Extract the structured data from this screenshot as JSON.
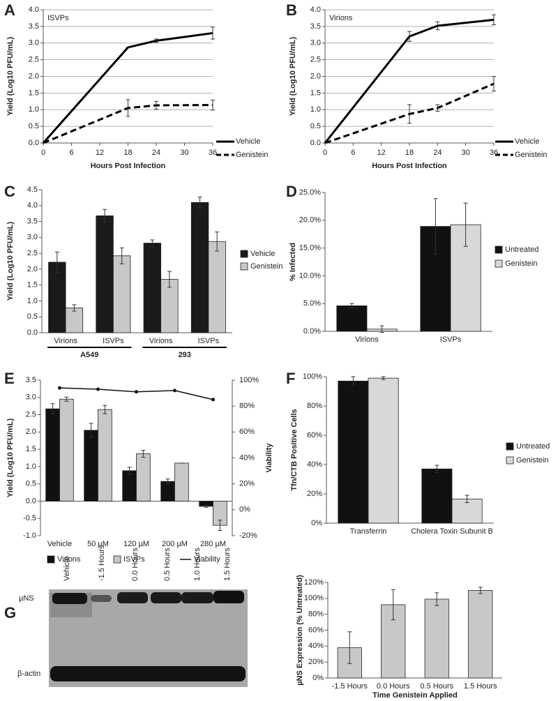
{
  "panels": [
    "A",
    "B",
    "C",
    "D",
    "E",
    "F",
    "G"
  ],
  "blot": {
    "lanes": [
      "Vehicle",
      "-1.5 Hours",
      "0.0 Hours",
      "0.5 Hours",
      "1.0 Hours",
      "1.5 Hours"
    ],
    "bands": [
      "µNS",
      "β-actin"
    ]
  },
  "chart_data": [
    {
      "type": "line",
      "annotation": "ISVPs",
      "xlabel": "Hours Post Infection",
      "ylabel": "Yield (Log10 PFU/mL)",
      "x": [
        0,
        18,
        24,
        36
      ],
      "xlim": [
        0,
        36
      ],
      "xticks": [
        0,
        6,
        12,
        18,
        24,
        30,
        36
      ],
      "ylim": [
        0,
        4
      ],
      "yticks": [
        {
          "value": 0,
          "label": "0.0"
        },
        {
          "value": 0.5,
          "label": "0.5"
        },
        {
          "value": 1,
          "label": "1.0"
        },
        {
          "value": 1.5,
          "label": "1.5"
        },
        {
          "value": 2,
          "label": "2.0"
        },
        {
          "value": 2.5,
          "label": "2.5"
        },
        {
          "value": 3,
          "label": "3.0"
        },
        {
          "value": 3.5,
          "label": "3.5"
        },
        {
          "value": 4,
          "label": "4.0"
        }
      ],
      "grid": true,
      "legend": "right",
      "series": [
        {
          "name": "Vehicle",
          "color": "#000000",
          "dash": false,
          "values": [
            0,
            2.87,
            3.07,
            3.3
          ],
          "errors": [
            0,
            0,
            0.05,
            0.18
          ]
        },
        {
          "name": "Genistein",
          "color": "#000000",
          "dash": true,
          "values": [
            0,
            1.05,
            1.13,
            1.14
          ],
          "errors": [
            0,
            0.25,
            0.12,
            0.15
          ]
        }
      ]
    },
    {
      "type": "line",
      "annotation": "Virions",
      "xlabel": "Hours Post Infection",
      "ylabel": "Yield (Log10 PFU/mL)",
      "x": [
        0,
        18,
        24,
        36
      ],
      "xlim": [
        0,
        36
      ],
      "xticks": [
        0,
        6,
        12,
        18,
        24,
        30,
        36
      ],
      "ylim": [
        0,
        4
      ],
      "yticks": [
        {
          "value": 0,
          "label": "0.0"
        },
        {
          "value": 0.5,
          "label": "0.5"
        },
        {
          "value": 1,
          "label": "1.0"
        },
        {
          "value": 1.5,
          "label": "1.5"
        },
        {
          "value": 2,
          "label": "2.0"
        },
        {
          "value": 2.5,
          "label": "2.5"
        },
        {
          "value": 3,
          "label": "3.0"
        },
        {
          "value": 3.5,
          "label": "3.5"
        },
        {
          "value": 4,
          "label": "4.0"
        }
      ],
      "grid": true,
      "legend": "right",
      "series": [
        {
          "name": "Vehicle",
          "color": "#000000",
          "dash": false,
          "values": [
            0,
            3.2,
            3.52,
            3.7
          ],
          "errors": [
            0,
            0.15,
            0.12,
            0.15
          ]
        },
        {
          "name": "Genistein",
          "color": "#000000",
          "dash": true,
          "values": [
            0,
            0.87,
            1.05,
            1.78
          ],
          "errors": [
            0,
            0.28,
            0.1,
            0.22
          ]
        }
      ]
    },
    {
      "type": "bar",
      "ylabel": "Yield (Log10 PFU/mL)",
      "categories": [
        "Virions",
        "ISVPs",
        "Virions",
        "ISVPs"
      ],
      "group_labels": [
        "A549",
        "293"
      ],
      "ylim": [
        0,
        4.5
      ],
      "yticks": [
        {
          "value": 0,
          "label": "0.0"
        },
        {
          "value": 0.5,
          "label": "0.5"
        },
        {
          "value": 1,
          "label": "1.0"
        },
        {
          "value": 1.5,
          "label": "1.5"
        },
        {
          "value": 2,
          "label": "2.0"
        },
        {
          "value": 2.5,
          "label": "2.5"
        },
        {
          "value": 3,
          "label": "3.0"
        },
        {
          "value": 3.5,
          "label": "3.5"
        },
        {
          "value": 4,
          "label": "4.0"
        },
        {
          "value": 4.5,
          "label": "4.5"
        }
      ],
      "grid": false,
      "legend": "right",
      "series": [
        {
          "name": "Vehicle",
          "color": "#1a1a1a",
          "values": [
            2.22,
            3.68,
            2.82,
            4.1
          ],
          "errors": [
            0.32,
            0.2,
            0.1,
            0.17
          ]
        },
        {
          "name": "Genistein",
          "color": "#c8c8c8",
          "values": [
            0.78,
            2.42,
            1.68,
            2.87
          ],
          "errors": [
            0.1,
            0.25,
            0.25,
            0.3
          ]
        }
      ]
    },
    {
      "type": "bar",
      "ylabel": "% Infected",
      "categories": [
        "Virions",
        "ISVPs"
      ],
      "ylim": [
        0,
        25
      ],
      "yticks": [
        {
          "value": 0,
          "label": "0.0%"
        },
        {
          "value": 5,
          "label": "5.0%"
        },
        {
          "value": 10,
          "label": "10.0%"
        },
        {
          "value": 15,
          "label": "15.0%"
        },
        {
          "value": 20,
          "label": "20.0%"
        },
        {
          "value": 25,
          "label": "25.0%"
        }
      ],
      "grid": false,
      "legend": "right",
      "series": [
        {
          "name": "Untreated",
          "color": "#111111",
          "values": [
            4.6,
            18.9
          ],
          "errors": [
            0.4,
            5
          ]
        },
        {
          "name": "Genistein",
          "color": "#d8d8d8",
          "values": [
            0.4,
            19.2
          ],
          "errors": [
            0.6,
            3.9
          ]
        }
      ]
    },
    {
      "type": "bar",
      "ylabel": "Yield (Log10 PFU/mL)",
      "y2label": "Viability",
      "categories": [
        "Vehicle",
        "50 µM",
        "120 µM",
        "200 µM",
        "280 µM"
      ],
      "ylim": [
        -1,
        3.5
      ],
      "yticks": [
        {
          "value": -1,
          "label": "-1.0"
        },
        {
          "value": -0.5,
          "label": "-0.5"
        },
        {
          "value": 0,
          "label": "0.0"
        },
        {
          "value": 0.5,
          "label": "0.5"
        },
        {
          "value": 1,
          "label": "1.0"
        },
        {
          "value": 1.5,
          "label": "1.5"
        },
        {
          "value": 2,
          "label": "2.0"
        },
        {
          "value": 2.5,
          "label": "2.5"
        },
        {
          "value": 3,
          "label": "3.0"
        },
        {
          "value": 3.5,
          "label": "3.5"
        }
      ],
      "y2lim": [
        -20,
        100
      ],
      "y2ticks": [
        {
          "value": -20,
          "label": "-20%"
        },
        {
          "value": 0,
          "label": "0%"
        },
        {
          "value": 20,
          "label": "20%"
        },
        {
          "value": 40,
          "label": "40%"
        },
        {
          "value": 60,
          "label": "60%"
        },
        {
          "value": 80,
          "label": "80%"
        },
        {
          "value": 100,
          "label": "100%"
        }
      ],
      "grid": false,
      "legend": "bottom",
      "series": [
        {
          "name": "Virions",
          "color": "#111111",
          "values": [
            2.67,
            2.05,
            0.88,
            0.57,
            -0.15
          ],
          "errors": [
            0.15,
            0.2,
            0.1,
            0.07,
            0.03
          ]
        },
        {
          "name": "ISVPs",
          "color": "#c8c8c8",
          "values": [
            2.95,
            2.65,
            1.37,
            1.1,
            -0.7
          ],
          "errors": [
            0.06,
            0.12,
            0.1,
            0,
            0.15
          ]
        },
        {
          "name": "Viability",
          "color": "#111111",
          "type": "line",
          "axis": "y2",
          "values": [
            94,
            93,
            91,
            92,
            85
          ]
        }
      ]
    },
    {
      "type": "bar",
      "ylabel": "Tfn/CTB Positive Cells",
      "categories": [
        "Transferrin",
        "Cholera Toxin Subunit B"
      ],
      "ylim": [
        0,
        100
      ],
      "yticks": [
        {
          "value": 0,
          "label": "0%"
        },
        {
          "value": 20,
          "label": "20%"
        },
        {
          "value": 40,
          "label": "40%"
        },
        {
          "value": 60,
          "label": "60%"
        },
        {
          "value": 80,
          "label": "80%"
        },
        {
          "value": 100,
          "label": "100%"
        }
      ],
      "grid": false,
      "legend": "right",
      "series": [
        {
          "name": "Untreated",
          "color": "#111111",
          "values": [
            97,
            37
          ],
          "errors": [
            3,
            2.5
          ]
        },
        {
          "name": "Genistein",
          "color": "#d8d8d8",
          "values": [
            99,
            16.5
          ],
          "errors": [
            1,
            2.5
          ]
        }
      ]
    },
    {
      "type": "bar",
      "ylabel": "µNS Expression (% Untreated)",
      "xlabel": "Time Genistein Applied",
      "categories": [
        "-1.5 Hours",
        "0.0 Hours",
        "0.5 Hours",
        "1.5 Hours"
      ],
      "ylim": [
        0,
        120
      ],
      "yticks": [
        {
          "value": 0,
          "label": "0%"
        },
        {
          "value": 20,
          "label": "20%"
        },
        {
          "value": 40,
          "label": "40%"
        },
        {
          "value": 60,
          "label": "60%"
        },
        {
          "value": 80,
          "label": "80%"
        },
        {
          "value": 100,
          "label": "100%"
        },
        {
          "value": 120,
          "label": "120%"
        }
      ],
      "grid": false,
      "series": [
        {
          "color": "#c8c8c8",
          "values": [
            38,
            92,
            99,
            110
          ],
          "errors": [
            20,
            19,
            8,
            4
          ]
        }
      ]
    }
  ]
}
